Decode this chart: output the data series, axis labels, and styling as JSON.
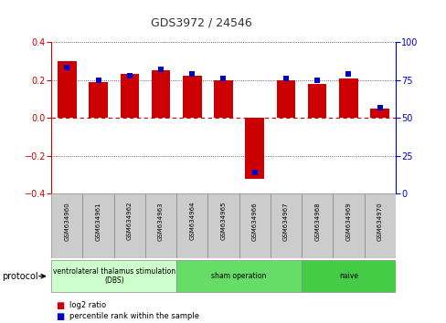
{
  "title": "GDS3972 / 24546",
  "samples": [
    "GSM634960",
    "GSM634961",
    "GSM634962",
    "GSM634963",
    "GSM634964",
    "GSM634965",
    "GSM634966",
    "GSM634967",
    "GSM634968",
    "GSM634969",
    "GSM634970"
  ],
  "log2_ratio": [
    0.3,
    0.19,
    0.23,
    0.25,
    0.22,
    0.2,
    -0.32,
    0.2,
    0.18,
    0.21,
    0.05
  ],
  "percentile_rank": [
    83,
    75,
    78,
    82,
    79,
    76,
    14,
    76,
    75,
    79,
    57
  ],
  "bar_color": "#cc0000",
  "dot_color": "#0000cc",
  "ylim_left": [
    -0.4,
    0.4
  ],
  "ylim_right": [
    0,
    100
  ],
  "yticks_left": [
    -0.4,
    -0.2,
    0.0,
    0.2,
    0.4
  ],
  "yticks_right": [
    0,
    25,
    50,
    75,
    100
  ],
  "groups": [
    {
      "label": "ventrolateral thalamus stimulation\n(DBS)",
      "start": 0,
      "end": 3,
      "color": "#ccffcc"
    },
    {
      "label": "sham operation",
      "start": 4,
      "end": 7,
      "color": "#66dd66"
    },
    {
      "label": "naive",
      "start": 8,
      "end": 10,
      "color": "#44cc44"
    }
  ],
  "legend_bar_label": "log2 ratio",
  "legend_dot_label": "percentile rank within the sample",
  "bar_color_label": "#cc0000",
  "dot_color_label": "#0000cc",
  "background_color": "#ffffff",
  "grid_color": "#000000",
  "zero_line_color": "#cc0000",
  "sample_box_color": "#cccccc",
  "sample_box_edge": "#888888"
}
